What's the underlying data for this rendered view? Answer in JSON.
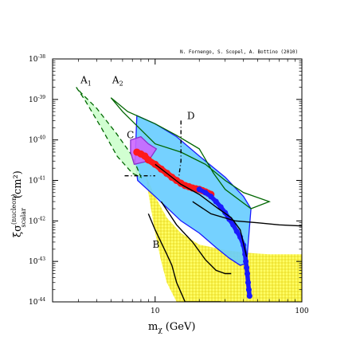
{
  "chart_data": {
    "type": "area",
    "credit": "N. Fornengo, S. Scopel, A. Bottino  (2010)",
    "xlabel": "m",
    "xlabel_sub": "χ",
    "xlabel_unit": "(GeV)",
    "ylabel_prefix": "ξσ",
    "ylabel_sup": "(nucleon)",
    "ylabel_sub": "scalar",
    "ylabel_unit": "(cm²)",
    "xscale": "log",
    "yscale": "log",
    "xlim": [
      2,
      100
    ],
    "ylim": [
      1e-44,
      1e-38
    ],
    "x_tick_labels": [
      {
        "value": 10,
        "label": "10"
      },
      {
        "value": 100,
        "label": "100"
      }
    ],
    "y_tick_labels": [
      {
        "exp": -38,
        "label": "10",
        "sup": "-38"
      },
      {
        "exp": -39,
        "label": "10",
        "sup": "-39"
      },
      {
        "exp": -40,
        "label": "10",
        "sup": "-40"
      },
      {
        "exp": -41,
        "label": "10",
        "sup": "-41"
      },
      {
        "exp": -42,
        "label": "10",
        "sup": "-42"
      },
      {
        "exp": -43,
        "label": "10",
        "sup": "-43"
      },
      {
        "exp": -44,
        "label": "10",
        "sup": "-44"
      }
    ],
    "colors": {
      "yellow": "#ffff66",
      "light_blue": "#66ccff",
      "blue": "#1a1aff",
      "red": "#ff1a1a",
      "purple": "#cc66ff",
      "light_green": "#ccffcc",
      "dark_green": "#006600"
    },
    "region_labels": [
      {
        "text": "A",
        "sub": "1",
        "x": 3.1,
        "y": 2.5e-39
      },
      {
        "text": "A",
        "sub": "2",
        "x": 5.1,
        "y": 2.5e-39
      },
      {
        "text": "C",
        "sub": "",
        "x": 6.4,
        "y": 1.1e-40
      },
      {
        "text": "D",
        "sub": "",
        "x": 16.5,
        "y": 3.3e-40
      },
      {
        "text": "B",
        "sub": "",
        "x": 9.6,
        "y": 2.2e-43
      }
    ],
    "regions": [
      {
        "id": "yellow-band",
        "fill": "yellow",
        "hatch": true,
        "stroke": "none",
        "points": [
          [
            8.5,
            1.5e-41
          ],
          [
            10,
            4e-42
          ],
          [
            12,
            1.2e-42
          ],
          [
            15,
            5e-43
          ],
          [
            20,
            2.6e-43
          ],
          [
            30,
            1.9e-43
          ],
          [
            45,
            1.6e-43
          ],
          [
            60,
            1.5e-43
          ],
          [
            100,
            1.5e-43
          ],
          [
            100,
            1e-44
          ],
          [
            41,
            1e-44
          ],
          [
            35,
            1e-44
          ],
          [
            28,
            1e-44
          ],
          [
            22,
            1e-44
          ],
          [
            18,
            1e-44
          ],
          [
            14,
            1e-44
          ],
          [
            12,
            3e-44
          ],
          [
            11,
            1e-43
          ],
          [
            10,
            5e-43
          ],
          [
            9.2,
            3e-42
          ],
          [
            8.7,
            1e-41
          ]
        ]
      },
      {
        "id": "light-blue-region",
        "fill": "light_blue",
        "hatch": false,
        "stroke": "blue",
        "points": [
          [
            7.5,
            4e-40
          ],
          [
            7.3,
            3e-41
          ],
          [
            7.6,
            1e-41
          ],
          [
            10,
            4e-42
          ],
          [
            15,
            1e-42
          ],
          [
            20,
            5e-43
          ],
          [
            26,
            2.2e-43
          ],
          [
            32,
            1.2e-43
          ],
          [
            38,
            8e-44
          ],
          [
            42,
            9e-44
          ],
          [
            45,
            2e-42
          ],
          [
            40,
            4e-42
          ],
          [
            30,
            1.2e-41
          ],
          [
            20,
            4e-41
          ],
          [
            14,
            1.2e-40
          ],
          [
            10,
            2.5e-40
          ]
        ]
      },
      {
        "id": "green-band-a1",
        "fill": "light_green",
        "hatch": false,
        "stroke": "dark_green",
        "dash": "6,4",
        "points": [
          [
            2.9,
            2e-39
          ],
          [
            3.3,
            1e-39
          ],
          [
            4.3,
            2e-40
          ],
          [
            5.5,
            4e-41
          ],
          [
            7,
            1.5e-41
          ],
          [
            8,
            1.2e-41
          ],
          [
            7,
            4e-41
          ],
          [
            5.4,
            1.5e-40
          ],
          [
            4,
            6e-40
          ],
          [
            3.1,
            1.5e-39
          ]
        ]
      },
      {
        "id": "green-band-a2",
        "fill": "none",
        "hatch": false,
        "stroke": "dark_green",
        "points": [
          [
            5,
            1.1e-39
          ],
          [
            6.5,
            5e-40
          ],
          [
            10,
            2.5e-40
          ],
          [
            14,
            1.3e-40
          ],
          [
            20,
            6e-41
          ],
          [
            25,
            1.5e-41
          ],
          [
            30,
            6e-42
          ],
          [
            45,
            2e-42
          ],
          [
            60,
            3e-42
          ],
          [
            40,
            5e-42
          ],
          [
            30,
            1e-41
          ],
          [
            22,
            2.5e-41
          ],
          [
            15,
            5e-41
          ],
          [
            10,
            8e-41
          ],
          [
            6,
            5e-40
          ]
        ]
      },
      {
        "id": "purple-region",
        "fill": "purple",
        "hatch": false,
        "stroke": "#8833cc",
        "points": [
          [
            6.8,
            1e-40
          ],
          [
            8,
            1.2e-40
          ],
          [
            9,
            8e-41
          ],
          [
            10.2,
            6e-41
          ],
          [
            9,
            3e-41
          ],
          [
            7.2,
            2.5e-41
          ],
          [
            6.8,
            5e-41
          ]
        ]
      }
    ],
    "series": [
      {
        "id": "red-points",
        "color": "red",
        "width": 7.5,
        "points": [
          [
            7.5,
            5e-41
          ],
          [
            8,
            4.5e-41
          ],
          [
            8.5,
            4e-41
          ],
          [
            9,
            3.2e-41
          ],
          [
            10,
            2.5e-41
          ],
          [
            11,
            1.9e-41
          ],
          [
            12,
            1.5e-41
          ],
          [
            13,
            1.2e-41
          ],
          [
            14,
            1e-41
          ],
          [
            15,
            8.5e-42
          ],
          [
            16,
            7.5e-42
          ],
          [
            17,
            7e-42
          ],
          [
            18,
            6.5e-42
          ],
          [
            19,
            6.2e-42
          ],
          [
            20,
            6e-42
          ],
          [
            21,
            5.6e-42
          ],
          [
            22,
            5.2e-42
          ],
          [
            23,
            4.8e-42
          ],
          [
            24,
            4.5e-42
          ]
        ]
      },
      {
        "id": "blue-points",
        "color": "blue",
        "width": 5.5,
        "points": [
          [
            20,
            6e-42
          ],
          [
            22,
            5e-42
          ],
          [
            24,
            4e-42
          ],
          [
            26,
            3e-42
          ],
          [
            28,
            2.2e-42
          ],
          [
            30,
            1.6e-42
          ],
          [
            32,
            1.1e-42
          ],
          [
            34,
            8e-43
          ],
          [
            36,
            5.5e-43
          ],
          [
            38,
            4e-43
          ],
          [
            40,
            2.5e-43
          ],
          [
            41,
            1.5e-43
          ],
          [
            41.5,
            1e-43
          ],
          [
            42,
            7e-44
          ],
          [
            42.5,
            5e-44
          ],
          [
            43,
            3e-44
          ],
          [
            43.5,
            2e-44
          ],
          [
            44,
            1.4e-44
          ]
        ]
      }
    ],
    "curves": [
      {
        "id": "curve-b-outer",
        "color": "black",
        "dash": "",
        "points": [
          [
            9,
            1.5e-42
          ],
          [
            10,
            6e-43
          ],
          [
            12,
            1.5e-43
          ],
          [
            13,
            8e-44
          ],
          [
            14,
            3e-44
          ],
          [
            16,
            1e-44
          ],
          [
            28,
            1e-44
          ]
        ]
      },
      {
        "id": "curve-b-inner",
        "color": "black",
        "dash": "",
        "points": [
          [
            11,
            3e-42
          ],
          [
            14,
            8e-43
          ],
          [
            18,
            3e-43
          ],
          [
            22,
            1.1e-43
          ],
          [
            26,
            6e-44
          ],
          [
            30,
            5e-44
          ],
          [
            33,
            5e-44
          ]
        ]
      },
      {
        "id": "curve-d-loop",
        "color": "black",
        "dash": "",
        "points": [
          [
            10,
            2.5e-41
          ],
          [
            12,
            1.5e-41
          ],
          [
            15,
            8e-42
          ],
          [
            20,
            4.5e-42
          ],
          [
            27,
            2e-42
          ],
          [
            33,
            1.2e-42
          ],
          [
            38,
            6e-43
          ],
          [
            42,
            1.3e-43
          ]
        ]
      },
      {
        "id": "curve-d-dashdot-vertical",
        "color": "black",
        "dash": "5,3,1,3",
        "points": [
          [
            15,
            3e-40
          ],
          [
            15,
            3e-41
          ],
          [
            14.5,
            1.2e-41
          ]
        ]
      },
      {
        "id": "curve-d-dashdot-horizontal",
        "color": "black",
        "dash": "5,3,1,3",
        "points": [
          [
            6.2,
            1.3e-41
          ],
          [
            9.5,
            1.3e-41
          ],
          [
            10,
            1.3e-41
          ]
        ]
      },
      {
        "id": "exclusion-line",
        "color": "black",
        "dash": "",
        "points": [
          [
            18,
            3e-42
          ],
          [
            24,
            1.5e-42
          ],
          [
            35,
            1e-42
          ],
          [
            50,
            9e-43
          ],
          [
            70,
            8e-43
          ],
          [
            100,
            7.5e-43
          ]
        ]
      }
    ]
  }
}
